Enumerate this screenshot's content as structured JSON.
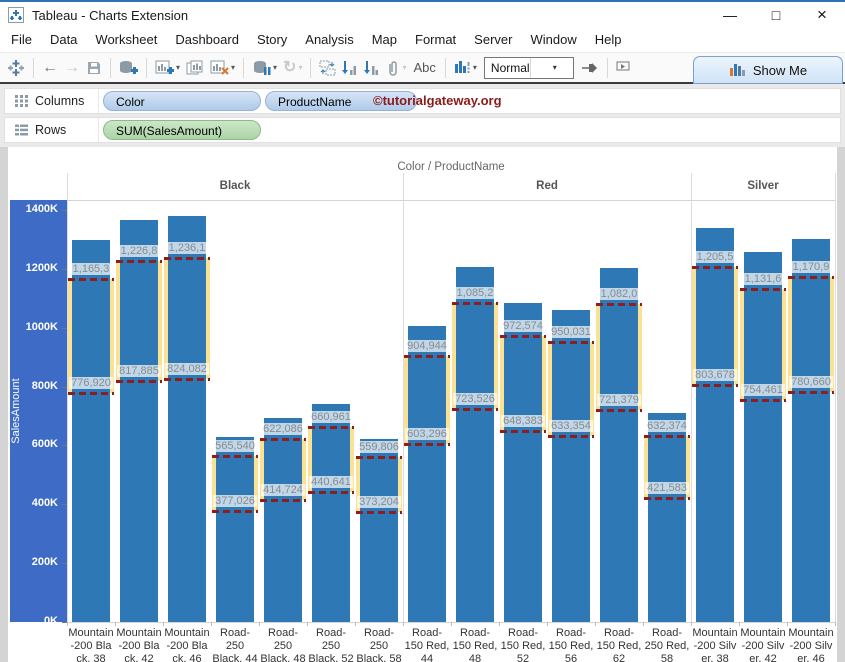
{
  "window_title": "Tableau - Charts Extension",
  "window_controls": {
    "minimize": "—",
    "maximize": "□",
    "close": "×"
  },
  "menu_items": [
    "File",
    "Data",
    "Worksheet",
    "Dashboard",
    "Story",
    "Analysis",
    "Map",
    "Format",
    "Server",
    "Window",
    "Help"
  ],
  "toolbar": {
    "abc_label": "Abc",
    "fit_value": "Normal",
    "show_me_label": "Show Me"
  },
  "shelves": {
    "columns_label": "Columns",
    "rows_label": "Rows",
    "columns_pills": [
      "Color",
      "ProductName"
    ],
    "rows_pills": [
      "SUM(SalesAmount)"
    ],
    "watermark": "©tutorialgateway.org",
    "pill_blue": "#AFCBEA",
    "pill_green": "#ABD5A6",
    "watermark_color": "#8B1A1A"
  },
  "chart_data": {
    "type": "bar",
    "title": "Color / ProductName",
    "ylabel": "SalesAmount",
    "ylim": [
      0,
      1400000
    ],
    "ytick_step": 200000,
    "ytick_labels": [
      "0K",
      "200K",
      "400K",
      "600K",
      "800K",
      "1000K",
      "1200K",
      "1400K"
    ],
    "legend": "none",
    "grid": "off",
    "colors": {
      "bar": "#2E79B5",
      "band": "#FAE292",
      "dash": "#8B1E1E",
      "axis_band": "#3E6BC5",
      "value_label": "#8A8A8A"
    },
    "panes": [
      {
        "header": "Black",
        "bars": [
          {
            "category_lines": [
              "Mountain",
              "-200 Bla",
              "ck, 38"
            ],
            "total": 1298000,
            "upper": 1165300,
            "lower": 776920,
            "upper_label": "1,165,3",
            "lower_label": "776,920"
          },
          {
            "category_lines": [
              "Mountain",
              "-200 Bla",
              "ck, 42"
            ],
            "total": 1366000,
            "upper": 1226800,
            "lower": 817885,
            "upper_label": "1,226,8",
            "lower_label": "817,885"
          },
          {
            "category_lines": [
              "Mountain",
              "-200 Bla",
              "ck, 46"
            ],
            "total": 1380000,
            "upper": 1236100,
            "lower": 824082,
            "upper_label": "1,236,1",
            "lower_label": "824,082"
          },
          {
            "category_lines": [
              "Road-",
              "250",
              "Black, 44"
            ],
            "total": 628000,
            "upper": 565540,
            "lower": 377026,
            "upper_label": "565,540",
            "lower_label": "377,026"
          },
          {
            "category_lines": [
              "Road-",
              "250",
              "Black, 48"
            ],
            "total": 693000,
            "upper": 622086,
            "lower": 414724,
            "upper_label": "622,086",
            "lower_label": "414,724"
          },
          {
            "category_lines": [
              "Road-",
              "250",
              "Black, 52"
            ],
            "total": 741000,
            "upper": 660961,
            "lower": 440641,
            "upper_label": "660,961",
            "lower_label": "440,641"
          },
          {
            "category_lines": [
              "Road-",
              "250",
              "Black, 58"
            ],
            "total": 622000,
            "upper": 559806,
            "lower": 373204,
            "upper_label": "559,806",
            "lower_label": "373,204"
          }
        ]
      },
      {
        "header": "Red",
        "bars": [
          {
            "category_lines": [
              "Road-",
              "150 Red,",
              "44"
            ],
            "total": 1006000,
            "upper": 904944,
            "lower": 603296,
            "upper_label": "904,944",
            "lower_label": "603,296"
          },
          {
            "category_lines": [
              "Road-",
              "150 Red,",
              "48"
            ],
            "total": 1206000,
            "upper": 1085200,
            "lower": 723526,
            "upper_label": "1,085,2",
            "lower_label": "723,526"
          },
          {
            "category_lines": [
              "Road-",
              "150 Red,",
              "52"
            ],
            "total": 1084000,
            "upper": 972574,
            "lower": 648383,
            "upper_label": "972,574",
            "lower_label": "648,383"
          },
          {
            "category_lines": [
              "Road-",
              "150 Red,",
              "56"
            ],
            "total": 1060000,
            "upper": 950031,
            "lower": 633354,
            "upper_label": "950,031",
            "lower_label": "633,354"
          },
          {
            "category_lines": [
              "Road-",
              "150 Red,",
              "62"
            ],
            "total": 1203000,
            "upper": 1082000,
            "lower": 721379,
            "upper_label": "1,082,0",
            "lower_label": "721,379"
          },
          {
            "category_lines": [
              "Road-",
              "250 Red,",
              "58"
            ],
            "total": 710000,
            "upper": 632374,
            "lower": 421583,
            "upper_label": "632,374",
            "lower_label": "421,583"
          }
        ]
      },
      {
        "header": "Silver",
        "bars": [
          {
            "category_lines": [
              "Mountain",
              "-200 Silv",
              "er, 38"
            ],
            "total": 1339000,
            "upper": 1205500,
            "lower": 803678,
            "upper_label": "1,205,5",
            "lower_label": "803,678"
          },
          {
            "category_lines": [
              "Mountain",
              "-200 Silv",
              "er, 42"
            ],
            "total": 1257000,
            "upper": 1131600,
            "lower": 754461,
            "upper_label": "1,131,6",
            "lower_label": "754,461"
          },
          {
            "category_lines": [
              "Mountain",
              "-200 Silv",
              "er, 46"
            ],
            "total": 1301000,
            "upper": 1170900,
            "lower": 780660,
            "upper_label": "1,170,9",
            "lower_label": "780,660"
          }
        ]
      }
    ]
  }
}
